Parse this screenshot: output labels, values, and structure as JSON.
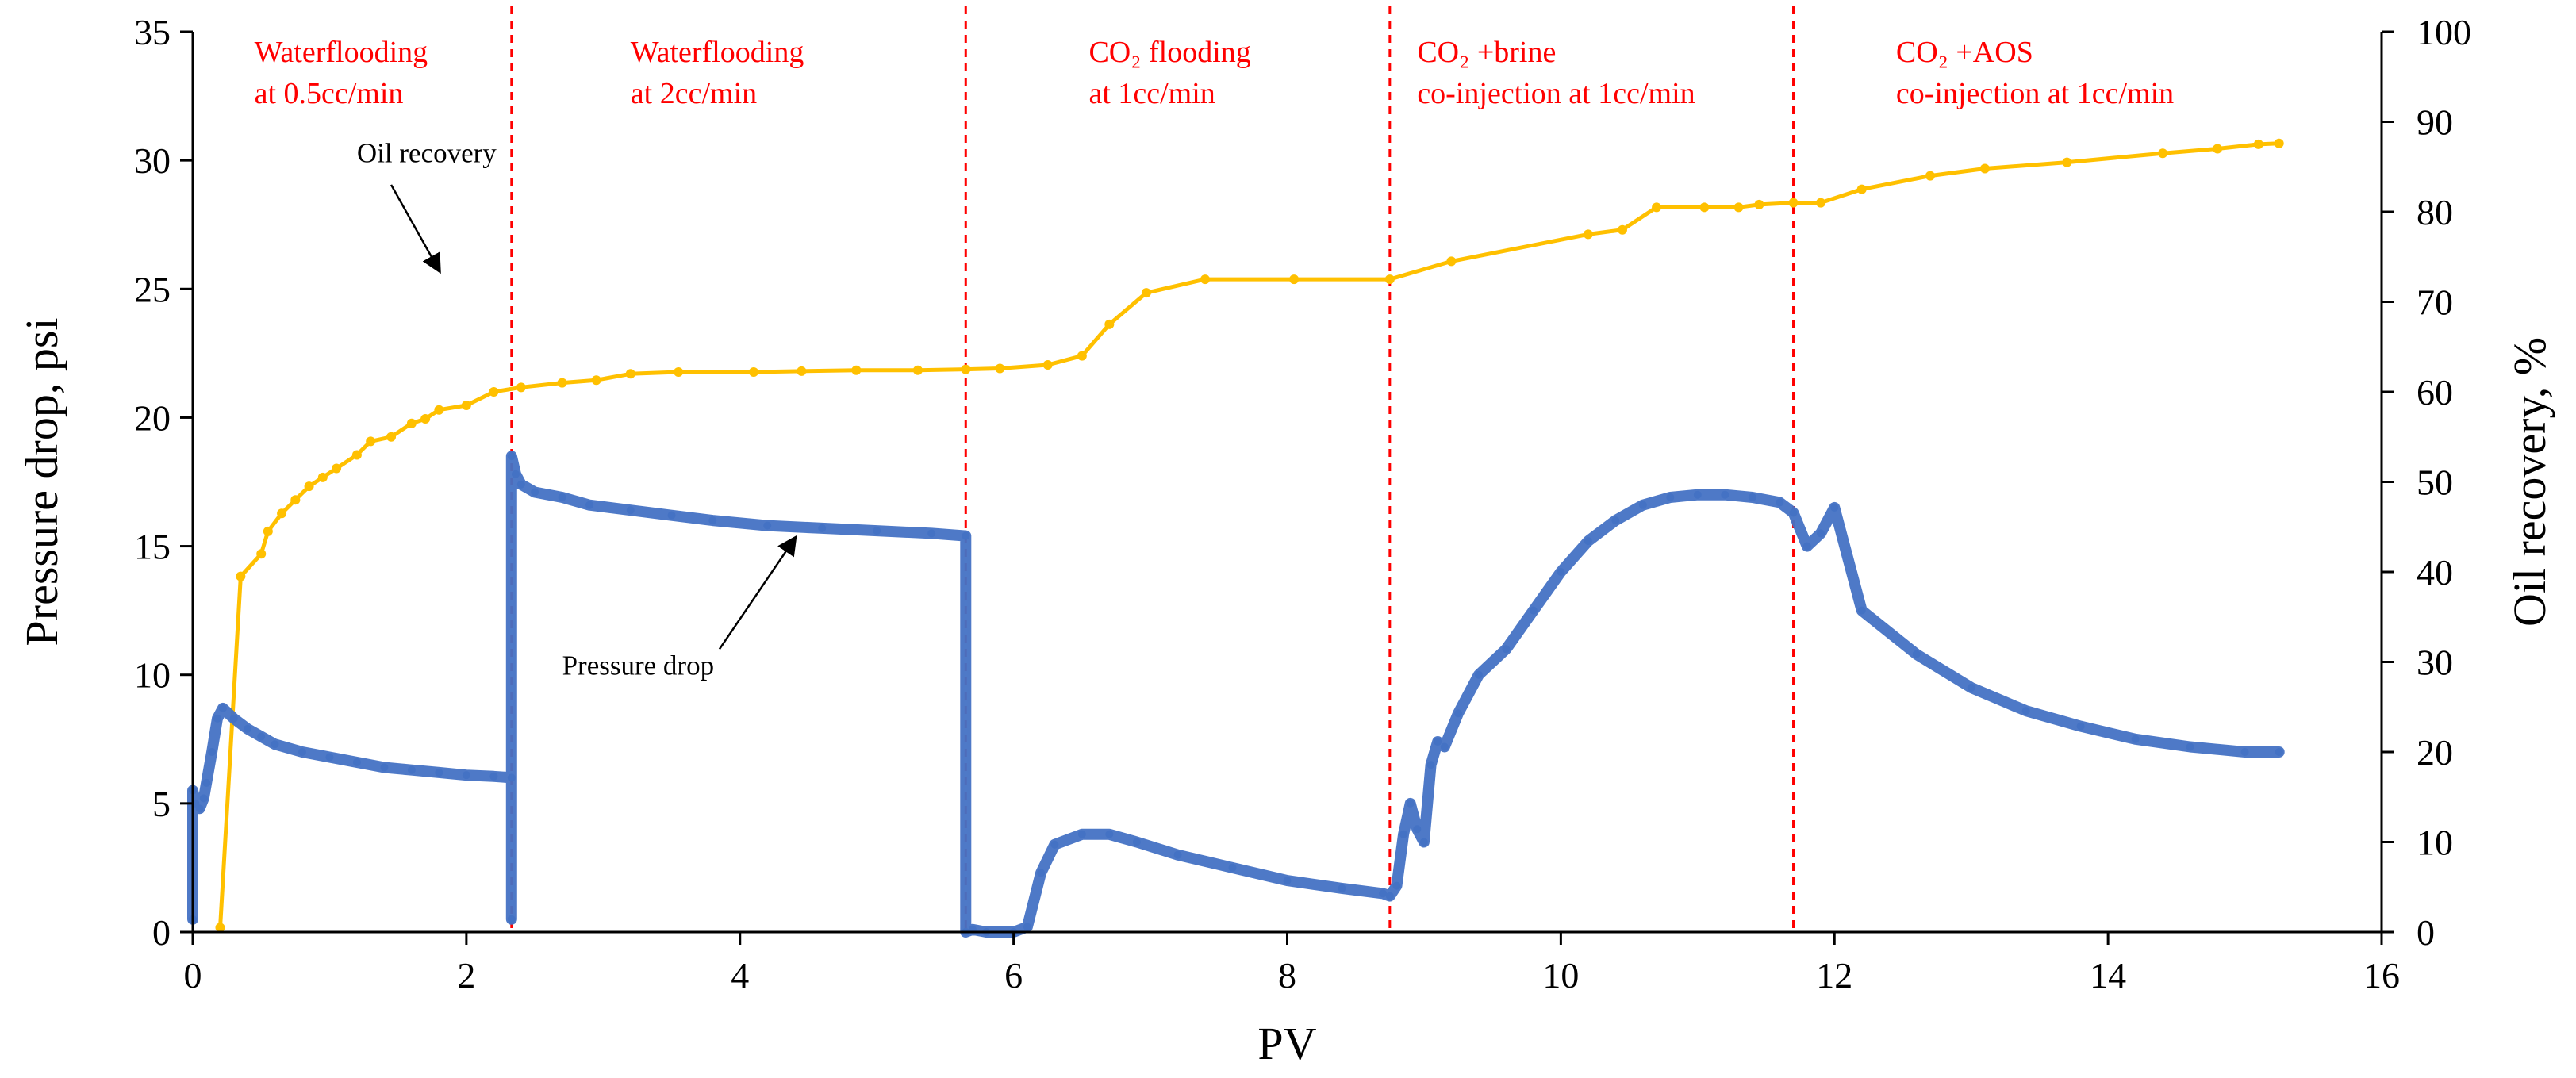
{
  "chart_data": {
    "type": "line",
    "xlabel": "PV",
    "ylabel": "Pressure drop, psi",
    "y2label": "Oil recovery, %",
    "xlim": [
      0,
      16
    ],
    "ylim": [
      0,
      35
    ],
    "y2lim": [
      0,
      100
    ],
    "x_ticks": [
      0,
      2,
      4,
      6,
      8,
      10,
      12,
      14,
      16
    ],
    "y_ticks": [
      0,
      5,
      10,
      15,
      20,
      25,
      30,
      35
    ],
    "y2_ticks": [
      0,
      10,
      20,
      30,
      40,
      50,
      60,
      70,
      80,
      90,
      100
    ],
    "grid": false,
    "phase_boundaries": [
      2.33,
      5.65,
      8.75,
      11.7
    ],
    "phases": [
      {
        "line1": "Waterflooding",
        "line2": "at 0.5cc/min",
        "x": 0.45
      },
      {
        "line1": "Waterflooding",
        "line2": "at 2cc/min",
        "x": 3.2
      },
      {
        "line1": "CO₂ flooding",
        "line2": "at 1cc/min",
        "x": 6.55
      },
      {
        "line1": "CO₂ +brine",
        "line2": "co-injection at 1cc/min",
        "x": 8.95
      },
      {
        "line1": "CO₂ +AOS",
        "line2": "co-injection at 1cc/min",
        "x": 12.45
      }
    ],
    "annotations": [
      {
        "text": "Oil recovery",
        "text_x": 1.2,
        "text_y": 85.5,
        "arrow_from": [
          1.45,
          83.0
        ],
        "arrow_to": [
          1.8,
          73.5
        ],
        "axis": "y2"
      },
      {
        "text": "Pressure drop",
        "text_x": 2.7,
        "text_y": 10.0,
        "arrow_from": [
          3.85,
          11.0
        ],
        "arrow_to": [
          4.4,
          15.3
        ],
        "axis": "y1"
      }
    ],
    "series": [
      {
        "name": "Oil recovery",
        "axis": "y2",
        "color": "#FFC000",
        "x": [
          0.2,
          0.35,
          0.5,
          0.55,
          0.65,
          0.75,
          0.85,
          0.95,
          1.05,
          1.2,
          1.3,
          1.45,
          1.6,
          1.7,
          1.8,
          2.0,
          2.2,
          2.4,
          2.7,
          2.95,
          3.2,
          3.55,
          4.1,
          4.45,
          4.85,
          5.3,
          5.65,
          5.9,
          6.25,
          6.5,
          6.7,
          6.97,
          7.4,
          8.05,
          8.75,
          9.2,
          10.2,
          10.45,
          10.7,
          11.05,
          11.3,
          11.45,
          11.7,
          11.9,
          12.2,
          12.7,
          13.1,
          13.7,
          14.4,
          14.8,
          15.1,
          15.25
        ],
        "values": [
          0.5,
          39.5,
          42.0,
          44.5,
          46.5,
          48.0,
          49.5,
          50.5,
          51.5,
          53.0,
          54.5,
          55.0,
          56.5,
          57.0,
          58.0,
          58.5,
          60.0,
          60.5,
          61.0,
          61.3,
          62.0,
          62.2,
          62.2,
          62.3,
          62.4,
          62.4,
          62.5,
          62.6,
          63.0,
          64.0,
          67.5,
          71.0,
          72.5,
          72.5,
          72.5,
          74.5,
          77.5,
          78.0,
          80.5,
          80.5,
          80.5,
          80.8,
          81.0,
          81.0,
          82.5,
          84.0,
          84.8,
          85.5,
          86.5,
          87.0,
          87.5,
          87.6
        ]
      },
      {
        "name": "Pressure drop",
        "axis": "y1",
        "color": "#4472C4",
        "x": [
          0.0,
          0.0,
          0.02,
          0.05,
          0.08,
          0.1,
          0.14,
          0.18,
          0.22,
          0.3,
          0.4,
          0.5,
          0.6,
          0.8,
          1.0,
          1.2,
          1.4,
          1.6,
          1.8,
          2.0,
          2.2,
          2.33,
          2.33,
          2.33,
          2.36,
          2.4,
          2.5,
          2.7,
          2.9,
          3.2,
          3.5,
          3.8,
          4.2,
          4.6,
          5.0,
          5.4,
          5.65,
          5.65,
          5.7,
          5.8,
          6.0,
          6.1,
          6.2,
          6.3,
          6.5,
          6.7,
          6.9,
          7.2,
          7.6,
          8.0,
          8.4,
          8.7,
          8.75,
          8.8,
          8.85,
          8.9,
          8.95,
          9.0,
          9.05,
          9.1,
          9.15,
          9.25,
          9.4,
          9.6,
          9.8,
          10.0,
          10.2,
          10.4,
          10.6,
          10.8,
          11.0,
          11.2,
          11.4,
          11.6,
          11.7,
          11.8,
          11.9,
          12.0,
          12.2,
          12.6,
          13.0,
          13.4,
          13.8,
          14.2,
          14.6,
          15.0,
          15.25
        ],
        "values": [
          0.5,
          5.5,
          5.0,
          4.8,
          5.2,
          5.8,
          7.0,
          8.3,
          8.7,
          8.3,
          7.9,
          7.6,
          7.3,
          7.0,
          6.8,
          6.6,
          6.4,
          6.3,
          6.2,
          6.1,
          6.05,
          6.0,
          0.5,
          18.5,
          17.8,
          17.4,
          17.1,
          16.9,
          16.6,
          16.4,
          16.2,
          16.0,
          15.8,
          15.7,
          15.6,
          15.5,
          15.4,
          0.0,
          0.1,
          0.0,
          0.0,
          0.2,
          2.3,
          3.4,
          3.8,
          3.8,
          3.5,
          3.0,
          2.5,
          2.0,
          1.7,
          1.5,
          1.4,
          1.8,
          3.8,
          5.0,
          4.0,
          3.5,
          6.5,
          7.4,
          7.2,
          8.5,
          10.0,
          11.0,
          12.5,
          14.0,
          15.2,
          16.0,
          16.6,
          16.9,
          17.0,
          17.0,
          16.9,
          16.7,
          16.3,
          15.0,
          15.5,
          16.5,
          12.5,
          10.8,
          9.5,
          8.6,
          8.0,
          7.5,
          7.2,
          7.0,
          7.0
        ]
      }
    ]
  }
}
